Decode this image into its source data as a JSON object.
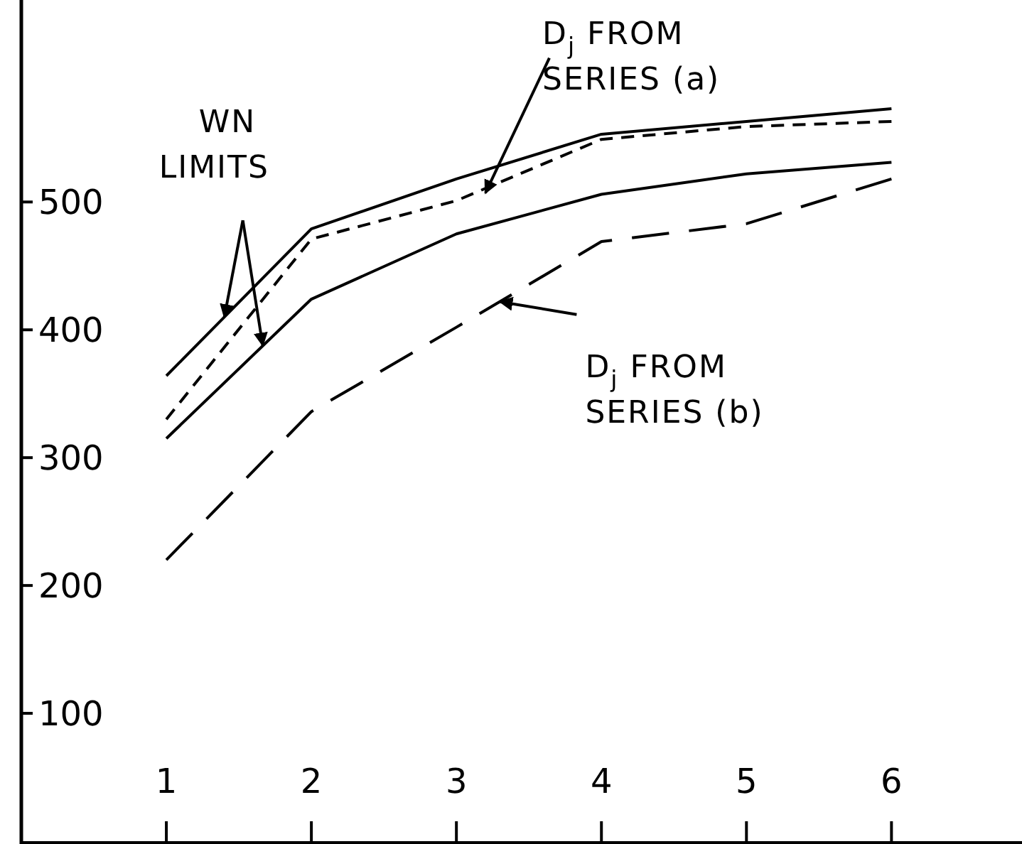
{
  "chart_data": {
    "type": "line",
    "x": [
      1,
      2,
      3,
      4,
      5,
      6
    ],
    "xlim": [
      0,
      6.9
    ],
    "xticks": [
      1,
      2,
      3,
      4,
      5,
      6
    ],
    "ylim": [
      0,
      658
    ],
    "yticks": [
      100,
      200,
      300,
      400,
      500
    ],
    "series": [
      {
        "color": "#000000",
        "line_style": "solid",
        "values": [
          364,
          479,
          518,
          553,
          563,
          573
        ]
      },
      {
        "color": "#000000",
        "line_style": "dashed",
        "values": [
          330,
          471,
          501,
          549,
          559,
          563
        ]
      },
      {
        "color": "#000000",
        "line_style": "solid",
        "values": [
          315,
          424,
          475,
          506,
          522,
          531
        ]
      },
      {
        "color": "#000000",
        "line_style": "longdash",
        "values": [
          220,
          336,
          402,
          469,
          483,
          518
        ]
      }
    ],
    "annotations": [
      {
        "text": "WN LIMITS",
        "x": 1.4,
        "y": 410
      },
      {
        "text": "D$_{j}$ FROM SERIES (a)",
        "x": 3.2,
        "y": 507
      },
      {
        "text": "D$_{j}$ FROM SERIES (b)",
        "x": 3.3,
        "y": 422
      }
    ]
  }
}
